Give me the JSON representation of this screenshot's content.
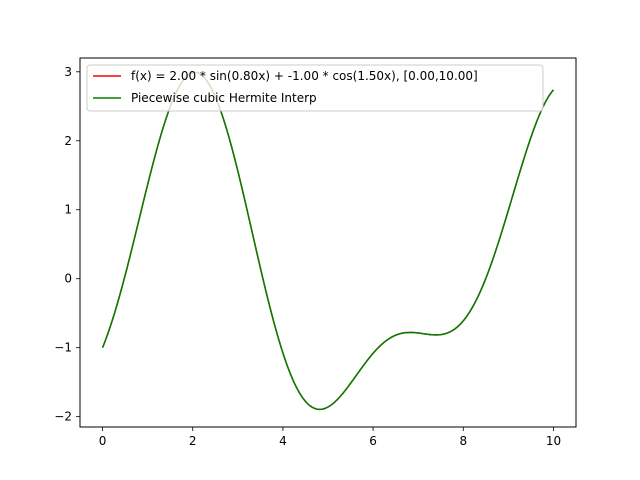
{
  "chart_data": {
    "type": "line",
    "title": "",
    "xlabel": "",
    "ylabel": "",
    "xlim": [
      -0.5,
      10.5
    ],
    "ylim": [
      -2.15,
      3.2
    ],
    "xticks": [
      0,
      2,
      4,
      6,
      8,
      10
    ],
    "yticks": [
      -2,
      -1,
      0,
      1,
      2,
      3
    ],
    "xtick_labels": [
      "0",
      "2",
      "4",
      "6",
      "8",
      "10"
    ],
    "ytick_labels": [
      "−2",
      "−1",
      "0",
      "1",
      "2",
      "3"
    ],
    "grid": false,
    "legend_position": "top-right",
    "function": {
      "a": 2.0,
      "p": 0.8,
      "b": -1.0,
      "q": 1.5,
      "domain": [
        0.0,
        10.0
      ]
    },
    "series": [
      {
        "name": "f(x) = 2.00 * sin(0.80x) + -1.00 * cos(1.50x), [0.00,10.00]",
        "color": "#ff0000",
        "style": "solid"
      },
      {
        "name": "Piecewise cubic Hermite Interp",
        "color": "#008000",
        "style": "solid"
      }
    ]
  }
}
